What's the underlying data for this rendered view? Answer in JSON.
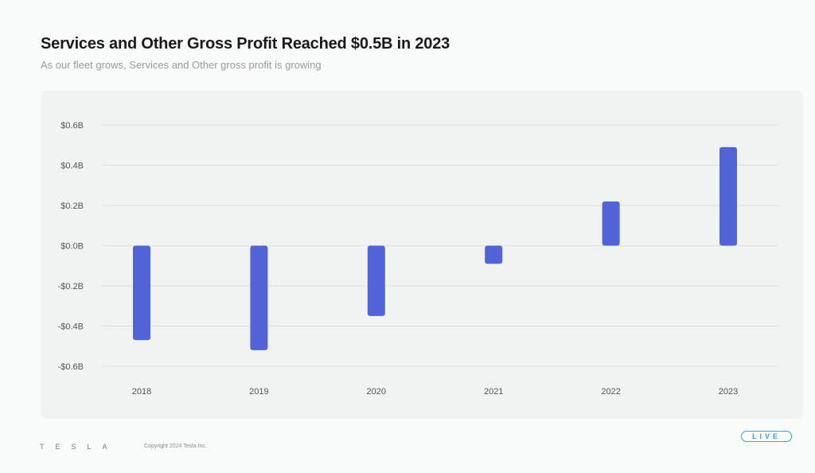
{
  "slide": {
    "title": "Services and Other Gross Profit Reached $0.5B in 2023",
    "subtitle": "As our fleet grows, Services and Other gross profit is growing"
  },
  "footer": {
    "logo": "TESLA",
    "copyright": "Copyright 2024 Tesla Inc.",
    "live_badge": "LIVE"
  },
  "colors": {
    "bar": "#5264d6",
    "grid": "#dde2df",
    "tick_text": "#555555"
  },
  "chart_data": {
    "type": "bar",
    "categories": [
      "2018",
      "2019",
      "2020",
      "2021",
      "2022",
      "2023"
    ],
    "values": [
      -0.47,
      -0.52,
      -0.35,
      -0.09,
      0.22,
      0.49
    ],
    "ylim": [
      -0.6,
      0.6
    ],
    "yticks": [
      0.6,
      0.4,
      0.2,
      0.0,
      -0.2,
      -0.4,
      -0.6
    ],
    "ytick_labels": [
      "$0.6B",
      "$0.4B",
      "$0.2B",
      "$0.0B",
      "-$0.2B",
      "-$0.4B",
      "-$0.6B"
    ],
    "grid": true,
    "legend": "none",
    "xlabel": "",
    "ylabel": ""
  }
}
